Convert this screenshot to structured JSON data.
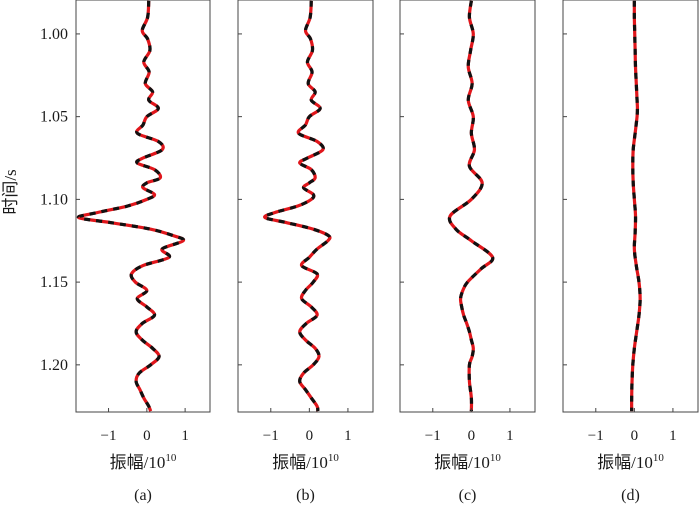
{
  "figure": {
    "ylabel": "时间/s",
    "xlabel_base": "振幅/10",
    "xlabel_exp": "10",
    "panel_labels": [
      "(a)",
      "(b)",
      "(c)",
      "(d)"
    ]
  },
  "colors": {
    "trace_primary": "#e0161b",
    "trace_overlay": "#111111",
    "axes": "#444444"
  },
  "chart_data": [
    {
      "type": "line",
      "panel": "(a)",
      "xlabel": "振幅/10^10",
      "ylabel": "时间/s",
      "xlim": [
        -1.85,
        1.65
      ],
      "ylim": [
        0.9795,
        1.2285
      ],
      "y_inverted": true,
      "x_ticks": [
        -1,
        0,
        1
      ],
      "y_ticks": [
        1.0,
        1.05,
        1.1,
        1.15,
        1.2
      ],
      "series": [
        {
          "style": "red-black dashed (overlapping traces)",
          "t": [
            0.98,
            0.99,
            0.998,
            1.003,
            1.01,
            1.017,
            1.023,
            1.03,
            1.035,
            1.04,
            1.045,
            1.05,
            1.055,
            1.06,
            1.065,
            1.07,
            1.075,
            1.078,
            1.082,
            1.087,
            1.09,
            1.093,
            1.097,
            1.1,
            1.104,
            1.108,
            1.111,
            1.114,
            1.118,
            1.122,
            1.125,
            1.13,
            1.135,
            1.14,
            1.145,
            1.15,
            1.155,
            1.16,
            1.165,
            1.17,
            1.175,
            1.18,
            1.185,
            1.19,
            1.195,
            1.2,
            1.205,
            1.21,
            1.215,
            1.22,
            1.225,
            1.228
          ],
          "amp": [
            0.05,
            0.02,
            -0.12,
            0.02,
            0.08,
            -0.08,
            0.06,
            -0.04,
            0.15,
            0.05,
            0.3,
            0.0,
            -0.1,
            -0.25,
            0.3,
            0.4,
            -0.1,
            -0.25,
            0.2,
            0.35,
            0.0,
            -0.1,
            0.2,
            0.0,
            -0.5,
            -1.3,
            -1.78,
            -0.95,
            0.1,
            0.7,
            0.95,
            0.4,
            0.58,
            -0.1,
            -0.4,
            -0.3,
            0.0,
            -0.25,
            0.0,
            0.2,
            -0.12,
            -0.28,
            -0.12,
            0.15,
            0.32,
            0.1,
            -0.2,
            -0.28,
            -0.18,
            -0.08,
            0.05,
            0.1
          ]
        }
      ]
    },
    {
      "type": "line",
      "panel": "(b)",
      "xlabel": "振幅/10^10",
      "ylabel": "时间/s",
      "xlim": [
        -1.85,
        1.65
      ],
      "ylim": [
        0.9795,
        1.2285
      ],
      "y_inverted": true,
      "x_ticks": [
        -1,
        0,
        1
      ],
      "y_ticks": [
        1.0,
        1.05,
        1.1,
        1.15,
        1.2
      ],
      "series": [
        {
          "style": "red-black dashed (overlapping traces)",
          "t": [
            0.98,
            0.99,
            0.998,
            1.003,
            1.01,
            1.017,
            1.023,
            1.03,
            1.035,
            1.04,
            1.045,
            1.05,
            1.055,
            1.06,
            1.065,
            1.07,
            1.075,
            1.078,
            1.082,
            1.087,
            1.09,
            1.093,
            1.097,
            1.1,
            1.104,
            1.108,
            1.111,
            1.114,
            1.118,
            1.122,
            1.125,
            1.13,
            1.135,
            1.14,
            1.145,
            1.15,
            1.155,
            1.16,
            1.165,
            1.17,
            1.175,
            1.18,
            1.185,
            1.19,
            1.195,
            1.2,
            1.205,
            1.21,
            1.215,
            1.22,
            1.225,
            1.228
          ],
          "amp": [
            0.05,
            0.02,
            -0.1,
            0.03,
            0.08,
            -0.05,
            0.07,
            -0.03,
            0.15,
            0.05,
            0.28,
            0.0,
            -0.1,
            -0.28,
            0.2,
            0.35,
            -0.05,
            -0.25,
            0.05,
            0.15,
            0.0,
            -0.15,
            0.1,
            0.05,
            -0.3,
            -0.9,
            -1.15,
            -0.6,
            0.1,
            0.5,
            0.48,
            0.2,
            0.0,
            -0.2,
            0.2,
            0.1,
            -0.1,
            -0.2,
            0.05,
            0.2,
            -0.08,
            -0.25,
            -0.1,
            0.15,
            0.25,
            0.1,
            -0.15,
            -0.25,
            -0.1,
            0.05,
            0.2,
            0.22
          ]
        }
      ]
    },
    {
      "type": "line",
      "panel": "(c)",
      "xlabel": "振幅/10^10",
      "ylabel": "时间/s",
      "xlim": [
        -1.85,
        1.65
      ],
      "ylim": [
        0.9795,
        1.2285
      ],
      "y_inverted": true,
      "x_ticks": [
        -1,
        0,
        1
      ],
      "y_ticks": [
        1.0,
        1.05,
        1.1,
        1.15,
        1.2
      ],
      "series": [
        {
          "style": "red-black dashed (overlapping traces)",
          "t": [
            0.98,
            0.99,
            1.0,
            1.01,
            1.02,
            1.03,
            1.04,
            1.05,
            1.06,
            1.07,
            1.08,
            1.09,
            1.1,
            1.11,
            1.118,
            1.125,
            1.135,
            1.142,
            1.15,
            1.155,
            1.16,
            1.165,
            1.17,
            1.175,
            1.18,
            1.185,
            1.19,
            1.195,
            1.2,
            1.21,
            1.22,
            1.228
          ],
          "amp": [
            0.0,
            -0.05,
            0.05,
            -0.02,
            -0.08,
            0.02,
            -0.08,
            0.05,
            0.0,
            0.08,
            -0.05,
            0.28,
            0.0,
            -0.55,
            -0.4,
            0.0,
            0.55,
            0.25,
            -0.1,
            -0.22,
            -0.28,
            -0.25,
            -0.2,
            -0.12,
            -0.05,
            0.0,
            0.05,
            0.02,
            -0.05,
            -0.05,
            0.0,
            0.0
          ]
        }
      ]
    },
    {
      "type": "line",
      "panel": "(d)",
      "xlabel": "振幅/10^10",
      "ylabel": "时间/s",
      "xlim": [
        -1.85,
        1.65
      ],
      "ylim": [
        0.9795,
        1.2285
      ],
      "y_inverted": true,
      "x_ticks": [
        -1,
        0,
        1
      ],
      "y_ticks": [
        1.0,
        1.05,
        1.1,
        1.15,
        1.2
      ],
      "series": [
        {
          "style": "red-black dashed (overlapping traces)",
          "t": [
            0.98,
            0.99,
            1.0,
            1.01,
            1.02,
            1.03,
            1.04,
            1.045,
            1.05,
            1.06,
            1.07,
            1.08,
            1.09,
            1.1,
            1.11,
            1.12,
            1.13,
            1.14,
            1.15,
            1.16,
            1.17,
            1.18,
            1.19,
            1.2,
            1.21,
            1.22,
            1.228
          ],
          "amp": [
            0.0,
            0.0,
            0.01,
            0.02,
            0.03,
            0.05,
            0.07,
            0.08,
            0.07,
            0.02,
            -0.03,
            -0.04,
            -0.03,
            0.0,
            0.03,
            0.02,
            0.0,
            0.05,
            0.12,
            0.15,
            0.12,
            0.06,
            0.0,
            -0.04,
            -0.06,
            -0.07,
            -0.07
          ]
        }
      ]
    }
  ]
}
